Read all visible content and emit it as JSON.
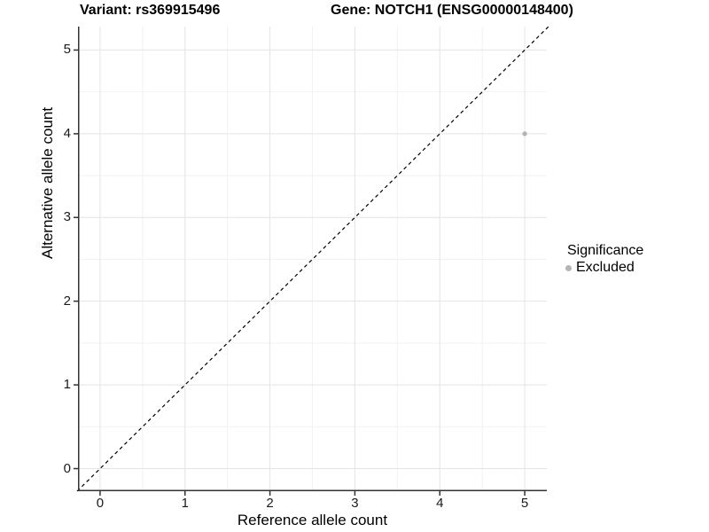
{
  "titles": {
    "left": "Variant: rs369915496",
    "right": "Gene: NOTCH1 (ENSG00000148400)"
  },
  "legend": {
    "title": "Significance",
    "items": [
      {
        "label": "Excluded",
        "color": "#b5b5b5"
      }
    ]
  },
  "chart_data": {
    "type": "scatter",
    "title": "",
    "xlabel": "Reference allele count",
    "ylabel": "Alternative allele count",
    "x_ticks": [
      0,
      1,
      2,
      3,
      4,
      5
    ],
    "y_ticks": [
      0,
      1,
      2,
      3,
      4,
      5
    ],
    "x_minor_ticks": [
      0.5,
      1.5,
      2.5,
      3.5,
      4.5
    ],
    "y_minor_ticks": [
      0.5,
      1.5,
      2.5,
      3.5,
      4.5
    ],
    "xlim": [
      -0.26,
      5.26
    ],
    "ylim": [
      -0.27,
      5.28
    ],
    "grid": true,
    "legend_position": "right",
    "series": [
      {
        "name": "Excluded",
        "color": "#b5b5b5",
        "points": [
          {
            "x": 5,
            "y": 4
          }
        ]
      }
    ],
    "reference_line": {
      "type": "identity",
      "style": "dashed",
      "color": "#000000"
    }
  },
  "colors": {
    "background": "#ffffff",
    "grid_major": "#e4e4e4",
    "grid_minor": "#f2f2f2",
    "axis_line": "#333333",
    "tick_text": "#1a1a1a",
    "point": "#b5b5b5"
  }
}
